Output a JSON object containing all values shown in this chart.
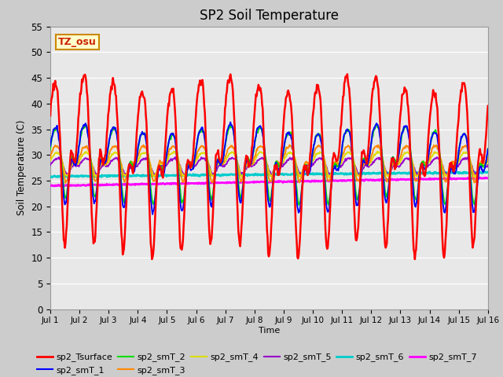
{
  "title": "SP2 Soil Temperature",
  "ylabel": "Soil Temperature (C)",
  "xlabel": "Time",
  "annotation": "TZ_osu",
  "annotation_color": "#cc2200",
  "annotation_bg": "#ffffcc",
  "annotation_border": "#cc8800",
  "ylim": [
    0,
    55
  ],
  "yticks": [
    0,
    5,
    10,
    15,
    20,
    25,
    30,
    35,
    40,
    45,
    50,
    55
  ],
  "xtick_labels": [
    "Jul 1",
    "Jul 2",
    "Jul 3",
    "Jul 4",
    "Jul 5",
    "Jul 6",
    "Jul 7",
    "Jul 8",
    "Jul 9",
    "Jul 10",
    "Jul 11",
    "Jul 12",
    "Jul 13",
    "Jul 14",
    "Jul 15",
    "Jul 16"
  ],
  "plot_bg_outer": "#cccccc",
  "plot_bg_inner": "#e8e8e8",
  "series_colors": {
    "sp2_Tsurface": "#ff0000",
    "sp2_smT_1": "#0000ff",
    "sp2_smT_2": "#00dd00",
    "sp2_smT_3": "#ff8800",
    "sp2_smT_4": "#dddd00",
    "sp2_smT_5": "#9900cc",
    "sp2_smT_6": "#00cccc",
    "sp2_smT_7": "#ff00ff"
  }
}
